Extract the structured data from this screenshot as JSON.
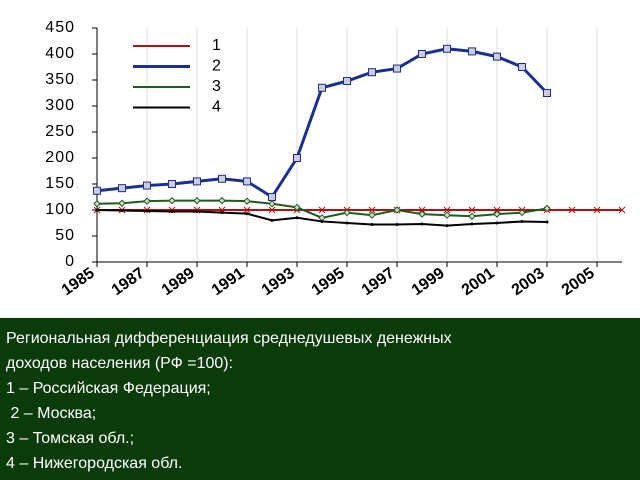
{
  "chart_data": {
    "type": "line",
    "x": [
      1985,
      1986,
      1987,
      1988,
      1989,
      1990,
      1991,
      1992,
      1993,
      1994,
      1995,
      1996,
      1997,
      1998,
      1999,
      2000,
      2001,
      2002,
      2003,
      2004,
      2005,
      2006
    ],
    "xlim": [
      1985,
      2006
    ],
    "xticks": [
      1985,
      1987,
      1989,
      1991,
      1993,
      1995,
      1997,
      1999,
      2001,
      2003,
      2005
    ],
    "ylim": [
      0,
      450
    ],
    "yticks": [
      0,
      50,
      100,
      150,
      200,
      250,
      300,
      350,
      400,
      450
    ],
    "legend": "top-left",
    "series": [
      {
        "name": "1",
        "color": "#b01010",
        "marker": "x",
        "values": [
          100,
          100,
          100,
          100,
          100,
          100,
          100,
          100,
          100,
          100,
          100,
          100,
          100,
          100,
          100,
          100,
          100,
          100,
          100,
          100,
          100,
          100
        ]
      },
      {
        "name": "2",
        "color": "#1a2f8f",
        "marker": "square",
        "values": [
          137,
          142,
          147,
          150,
          155,
          160,
          155,
          125,
          200,
          335,
          348,
          365,
          372,
          400,
          410,
          405,
          395,
          375,
          325,
          null,
          null,
          null
        ]
      },
      {
        "name": "3",
        "color": "#1f5a1f",
        "marker": "diamond",
        "values": [
          112,
          113,
          117,
          118,
          118,
          118,
          117,
          112,
          105,
          85,
          95,
          90,
          100,
          92,
          90,
          88,
          92,
          95,
          103,
          null,
          null,
          null
        ]
      },
      {
        "name": "4",
        "color": "#000000",
        "marker": "dot",
        "values": [
          100,
          99,
          98,
          97,
          97,
          95,
          93,
          80,
          85,
          78,
          75,
          72,
          72,
          73,
          70,
          73,
          75,
          78,
          77,
          null,
          null,
          null
        ]
      }
    ]
  },
  "caption": [
    "Региональная дифференциация среднедушевых денежных",
    "доходов населения (РФ =100):",
    "1 – Российская Федерация;",
    " 2 – Москва;",
    "3 – Томская обл.;",
    "4 – Нижегородская обл."
  ]
}
